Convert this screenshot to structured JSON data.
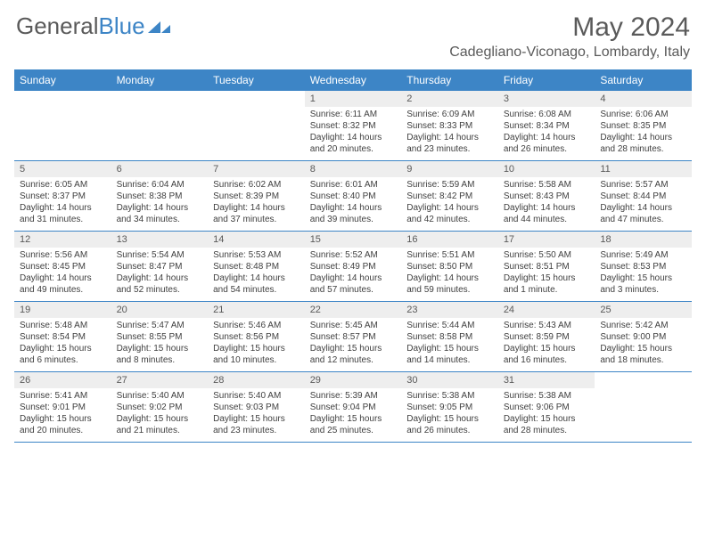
{
  "logo": {
    "part1": "General",
    "part2": "Blue"
  },
  "title": "May 2024",
  "location": "Cadegliano-Viconago, Lombardy, Italy",
  "dow": [
    "Sunday",
    "Monday",
    "Tuesday",
    "Wednesday",
    "Thursday",
    "Friday",
    "Saturday"
  ],
  "colors": {
    "header_bg": "#3d85c6",
    "header_fg": "#ffffff",
    "daynum_bg": "#eeeeee",
    "text": "#595959"
  },
  "weeks": [
    [
      {
        "n": "",
        "sr": "",
        "ss": "",
        "dl": ""
      },
      {
        "n": "",
        "sr": "",
        "ss": "",
        "dl": ""
      },
      {
        "n": "",
        "sr": "",
        "ss": "",
        "dl": ""
      },
      {
        "n": "1",
        "sr": "Sunrise: 6:11 AM",
        "ss": "Sunset: 8:32 PM",
        "dl": "Daylight: 14 hours and 20 minutes."
      },
      {
        "n": "2",
        "sr": "Sunrise: 6:09 AM",
        "ss": "Sunset: 8:33 PM",
        "dl": "Daylight: 14 hours and 23 minutes."
      },
      {
        "n": "3",
        "sr": "Sunrise: 6:08 AM",
        "ss": "Sunset: 8:34 PM",
        "dl": "Daylight: 14 hours and 26 minutes."
      },
      {
        "n": "4",
        "sr": "Sunrise: 6:06 AM",
        "ss": "Sunset: 8:35 PM",
        "dl": "Daylight: 14 hours and 28 minutes."
      }
    ],
    [
      {
        "n": "5",
        "sr": "Sunrise: 6:05 AM",
        "ss": "Sunset: 8:37 PM",
        "dl": "Daylight: 14 hours and 31 minutes."
      },
      {
        "n": "6",
        "sr": "Sunrise: 6:04 AM",
        "ss": "Sunset: 8:38 PM",
        "dl": "Daylight: 14 hours and 34 minutes."
      },
      {
        "n": "7",
        "sr": "Sunrise: 6:02 AM",
        "ss": "Sunset: 8:39 PM",
        "dl": "Daylight: 14 hours and 37 minutes."
      },
      {
        "n": "8",
        "sr": "Sunrise: 6:01 AM",
        "ss": "Sunset: 8:40 PM",
        "dl": "Daylight: 14 hours and 39 minutes."
      },
      {
        "n": "9",
        "sr": "Sunrise: 5:59 AM",
        "ss": "Sunset: 8:42 PM",
        "dl": "Daylight: 14 hours and 42 minutes."
      },
      {
        "n": "10",
        "sr": "Sunrise: 5:58 AM",
        "ss": "Sunset: 8:43 PM",
        "dl": "Daylight: 14 hours and 44 minutes."
      },
      {
        "n": "11",
        "sr": "Sunrise: 5:57 AM",
        "ss": "Sunset: 8:44 PM",
        "dl": "Daylight: 14 hours and 47 minutes."
      }
    ],
    [
      {
        "n": "12",
        "sr": "Sunrise: 5:56 AM",
        "ss": "Sunset: 8:45 PM",
        "dl": "Daylight: 14 hours and 49 minutes."
      },
      {
        "n": "13",
        "sr": "Sunrise: 5:54 AM",
        "ss": "Sunset: 8:47 PM",
        "dl": "Daylight: 14 hours and 52 minutes."
      },
      {
        "n": "14",
        "sr": "Sunrise: 5:53 AM",
        "ss": "Sunset: 8:48 PM",
        "dl": "Daylight: 14 hours and 54 minutes."
      },
      {
        "n": "15",
        "sr": "Sunrise: 5:52 AM",
        "ss": "Sunset: 8:49 PM",
        "dl": "Daylight: 14 hours and 57 minutes."
      },
      {
        "n": "16",
        "sr": "Sunrise: 5:51 AM",
        "ss": "Sunset: 8:50 PM",
        "dl": "Daylight: 14 hours and 59 minutes."
      },
      {
        "n": "17",
        "sr": "Sunrise: 5:50 AM",
        "ss": "Sunset: 8:51 PM",
        "dl": "Daylight: 15 hours and 1 minute."
      },
      {
        "n": "18",
        "sr": "Sunrise: 5:49 AM",
        "ss": "Sunset: 8:53 PM",
        "dl": "Daylight: 15 hours and 3 minutes."
      }
    ],
    [
      {
        "n": "19",
        "sr": "Sunrise: 5:48 AM",
        "ss": "Sunset: 8:54 PM",
        "dl": "Daylight: 15 hours and 6 minutes."
      },
      {
        "n": "20",
        "sr": "Sunrise: 5:47 AM",
        "ss": "Sunset: 8:55 PM",
        "dl": "Daylight: 15 hours and 8 minutes."
      },
      {
        "n": "21",
        "sr": "Sunrise: 5:46 AM",
        "ss": "Sunset: 8:56 PM",
        "dl": "Daylight: 15 hours and 10 minutes."
      },
      {
        "n": "22",
        "sr": "Sunrise: 5:45 AM",
        "ss": "Sunset: 8:57 PM",
        "dl": "Daylight: 15 hours and 12 minutes."
      },
      {
        "n": "23",
        "sr": "Sunrise: 5:44 AM",
        "ss": "Sunset: 8:58 PM",
        "dl": "Daylight: 15 hours and 14 minutes."
      },
      {
        "n": "24",
        "sr": "Sunrise: 5:43 AM",
        "ss": "Sunset: 8:59 PM",
        "dl": "Daylight: 15 hours and 16 minutes."
      },
      {
        "n": "25",
        "sr": "Sunrise: 5:42 AM",
        "ss": "Sunset: 9:00 PM",
        "dl": "Daylight: 15 hours and 18 minutes."
      }
    ],
    [
      {
        "n": "26",
        "sr": "Sunrise: 5:41 AM",
        "ss": "Sunset: 9:01 PM",
        "dl": "Daylight: 15 hours and 20 minutes."
      },
      {
        "n": "27",
        "sr": "Sunrise: 5:40 AM",
        "ss": "Sunset: 9:02 PM",
        "dl": "Daylight: 15 hours and 21 minutes."
      },
      {
        "n": "28",
        "sr": "Sunrise: 5:40 AM",
        "ss": "Sunset: 9:03 PM",
        "dl": "Daylight: 15 hours and 23 minutes."
      },
      {
        "n": "29",
        "sr": "Sunrise: 5:39 AM",
        "ss": "Sunset: 9:04 PM",
        "dl": "Daylight: 15 hours and 25 minutes."
      },
      {
        "n": "30",
        "sr": "Sunrise: 5:38 AM",
        "ss": "Sunset: 9:05 PM",
        "dl": "Daylight: 15 hours and 26 minutes."
      },
      {
        "n": "31",
        "sr": "Sunrise: 5:38 AM",
        "ss": "Sunset: 9:06 PM",
        "dl": "Daylight: 15 hours and 28 minutes."
      },
      {
        "n": "",
        "sr": "",
        "ss": "",
        "dl": ""
      }
    ]
  ]
}
